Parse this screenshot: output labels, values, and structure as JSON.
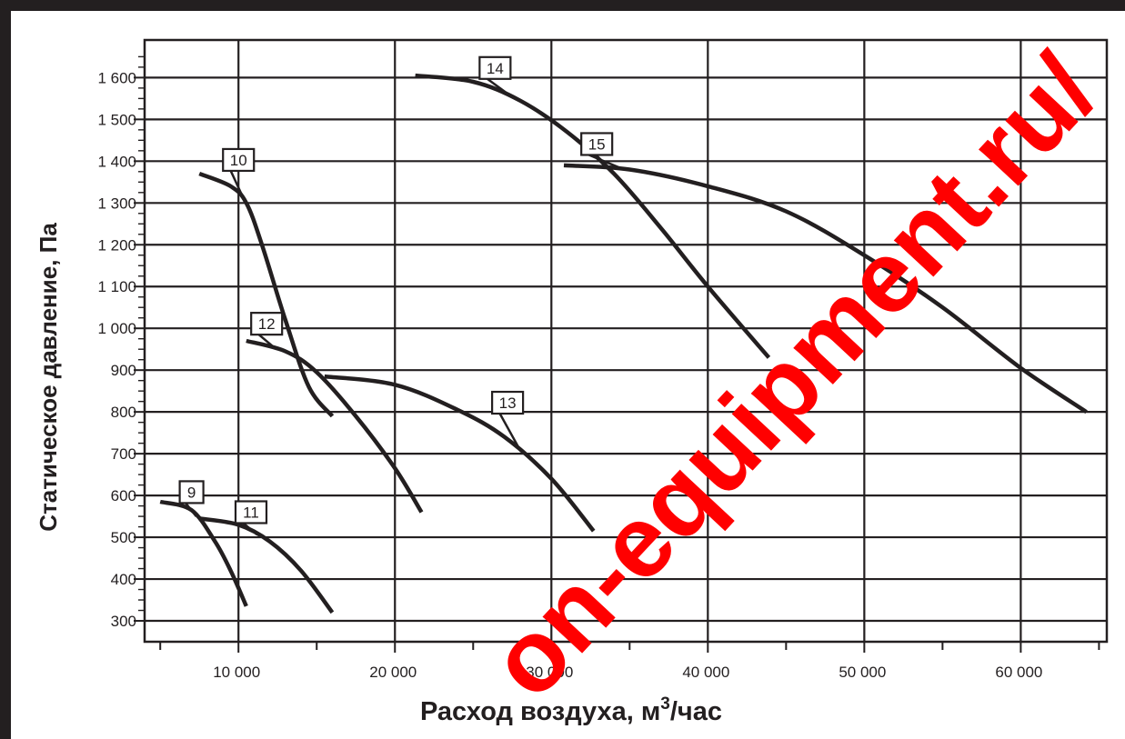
{
  "chart_data": {
    "type": "line",
    "xlabel": "Расход воздуха, м",
    "xlabel_sup": "3",
    "xlabel_tail": "/час",
    "ylabel": "Статическое давление, Па",
    "xlim": [
      4000,
      65500
    ],
    "ylim": [
      250,
      1690
    ],
    "x_ticks": [
      10000,
      20000,
      30000,
      40000,
      50000,
      60000
    ],
    "x_tick_labels": [
      "10 000",
      "20 000",
      "30 000",
      "40 000",
      "50 000",
      "60 000"
    ],
    "y_ticks": [
      300,
      400,
      500,
      600,
      700,
      800,
      900,
      1000,
      1100,
      1200,
      1300,
      1400,
      1500,
      1600
    ],
    "y_tick_labels": [
      "300",
      "400",
      "500",
      "600",
      "700",
      "800",
      "900",
      "1 000",
      "1 100",
      "1 200",
      "1 300",
      "1 400",
      "1 500",
      "1 600"
    ],
    "grid": true,
    "series": [
      {
        "name": "9",
        "x": [
          5000,
          7000,
          8500,
          9500,
          10500
        ],
        "y": [
          585,
          565,
          490,
          420,
          335
        ]
      },
      {
        "name": "10",
        "x": [
          7500,
          9500,
          10500,
          11500,
          13000,
          14500,
          16000
        ],
        "y": [
          1370,
          1340,
          1300,
          1200,
          1020,
          860,
          790
        ]
      },
      {
        "name": "11",
        "x": [
          7500,
          10000,
          12000,
          14000,
          16000
        ],
        "y": [
          545,
          530,
          490,
          420,
          320
        ]
      },
      {
        "name": "12",
        "x": [
          10500,
          13000,
          15000,
          17500,
          20000,
          21700
        ],
        "y": [
          970,
          945,
          895,
          790,
          665,
          560
        ]
      },
      {
        "name": "13",
        "x": [
          15500,
          20000,
          24000,
          27000,
          30000,
          32700
        ],
        "y": [
          885,
          865,
          805,
          740,
          640,
          515
        ]
      },
      {
        "name": "14",
        "x": [
          21300,
          25000,
          28000,
          31000,
          34000,
          37000,
          40000,
          43900
        ],
        "y": [
          1605,
          1590,
          1545,
          1470,
          1370,
          1240,
          1100,
          930
        ]
      },
      {
        "name": "15",
        "x": [
          30800,
          35000,
          40000,
          45000,
          50000,
          55000,
          60000,
          64200
        ],
        "y": [
          1390,
          1380,
          1340,
          1280,
          1175,
          1050,
          905,
          800
        ]
      }
    ],
    "series_color": "#231f20",
    "curve_labels": [
      {
        "text": "9",
        "at_x": 7000,
        "at_y": 608
      },
      {
        "text": "10",
        "at_x": 10000,
        "at_y": 1403
      },
      {
        "text": "11",
        "at_x": 10800,
        "at_y": 560
      },
      {
        "text": "12",
        "at_x": 11800,
        "at_y": 1011
      },
      {
        "text": "13",
        "at_x": 27200,
        "at_y": 822
      },
      {
        "text": "14",
        "at_x": 26400,
        "at_y": 1623
      },
      {
        "text": "15",
        "at_x": 32900,
        "at_y": 1441
      }
    ]
  },
  "watermark": {
    "text": "on-equipment.ru/",
    "color": "#ff0000"
  }
}
